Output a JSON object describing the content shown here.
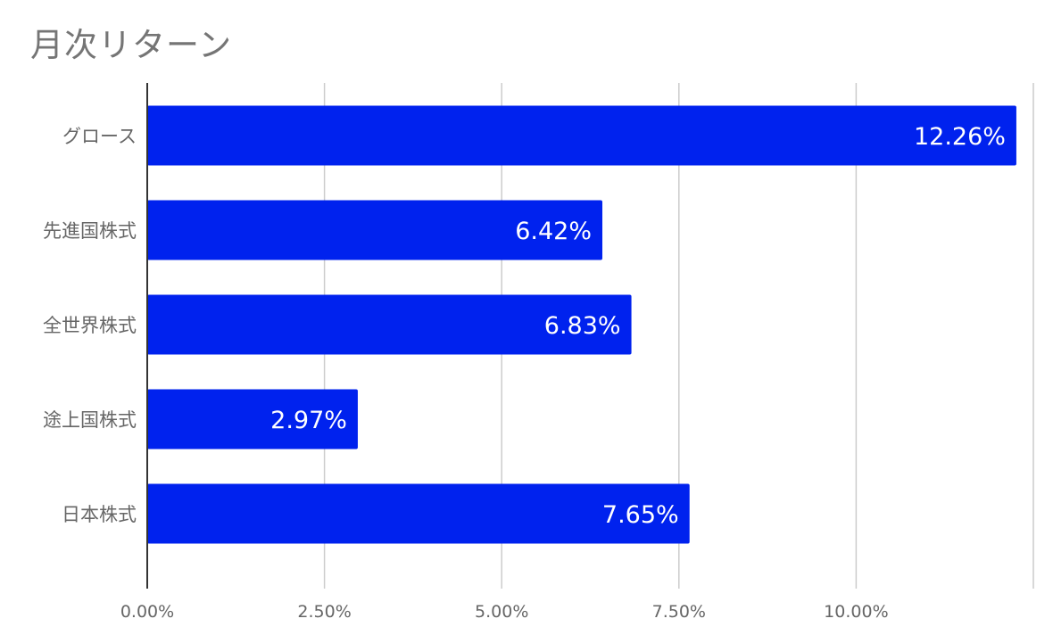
{
  "chart_data": {
    "type": "bar",
    "orientation": "horizontal",
    "title": "月次リターン",
    "xlabel": "",
    "ylabel": "",
    "categories": [
      "グロース",
      "先進国株式",
      "全世界株式",
      "途上国株式",
      "日本株式"
    ],
    "values": [
      12.26,
      6.42,
      6.83,
      2.97,
      7.65
    ],
    "data_labels": [
      "12.26%",
      "6.42%",
      "6.83%",
      "2.97%",
      "7.65%"
    ],
    "x_ticks": [
      0,
      2.5,
      5,
      7.5,
      10
    ],
    "x_tick_labels": [
      "0.00%",
      "2.50%",
      "5.00%",
      "7.50%",
      "10.00%"
    ],
    "xlim": [
      0,
      12.5
    ],
    "grid": true,
    "legend": "none",
    "colors": {
      "bar": "#0022ee",
      "grid": "#cccccc",
      "axis": "#333333",
      "title": "#757575",
      "label": "#666666",
      "data_label": "#ffffff"
    }
  }
}
